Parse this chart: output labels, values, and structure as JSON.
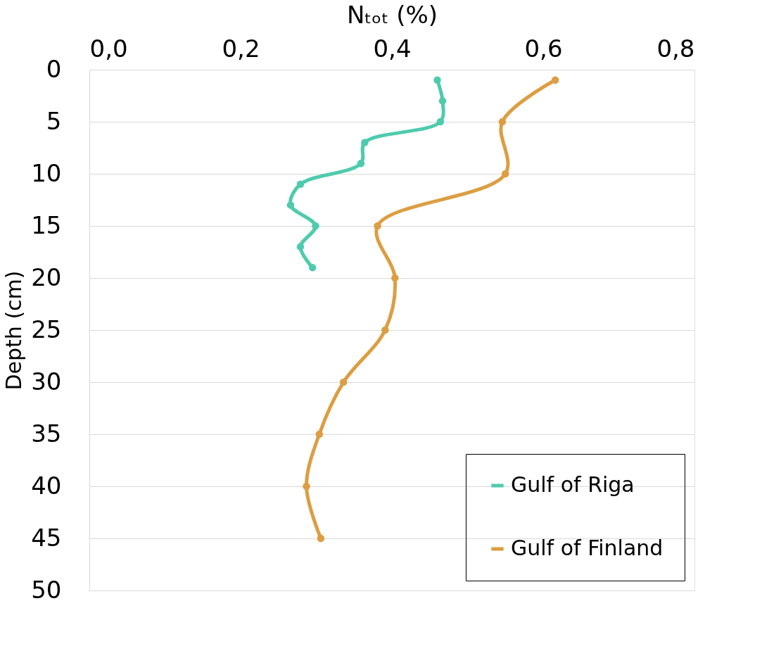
{
  "chart_data": {
    "type": "line",
    "xlabel": "Nₜₒₜ (%)",
    "ylabel": "Depth (cm)",
    "xlim": [
      0,
      0.8
    ],
    "xticks": [
      {
        "value": 0,
        "label": "0,0"
      },
      {
        "value": 0.2,
        "label": "0,2"
      },
      {
        "value": 0.4,
        "label": "0,4"
      },
      {
        "value": 0.6,
        "label": "0,6"
      },
      {
        "value": 0.8,
        "label": "0,8"
      }
    ],
    "ylim": [
      50,
      0
    ],
    "yticks": [
      0,
      5,
      10,
      15,
      20,
      25,
      30,
      35,
      40,
      45,
      50
    ],
    "grid": "y",
    "legend": "bottom right",
    "marker": "circle",
    "line_style": "solid",
    "series": [
      {
        "name": "Gulf of Riga",
        "color": "#4ecbad",
        "x": [
          0.46,
          0.467,
          0.464,
          0.364,
          0.359,
          0.279,
          0.266,
          0.299,
          0.279,
          0.295
        ],
        "values": [
          1,
          3,
          5,
          7,
          9,
          11,
          13,
          15,
          17,
          19
        ]
      },
      {
        "name": "Gulf of Finland",
        "color": "#dc9e42",
        "x": [
          0.616,
          0.546,
          0.55,
          0.381,
          0.404,
          0.391,
          0.336,
          0.304,
          0.287,
          0.306
        ],
        "values": [
          1,
          5,
          10,
          15,
          20,
          25,
          30,
          35,
          40,
          45
        ]
      }
    ]
  }
}
